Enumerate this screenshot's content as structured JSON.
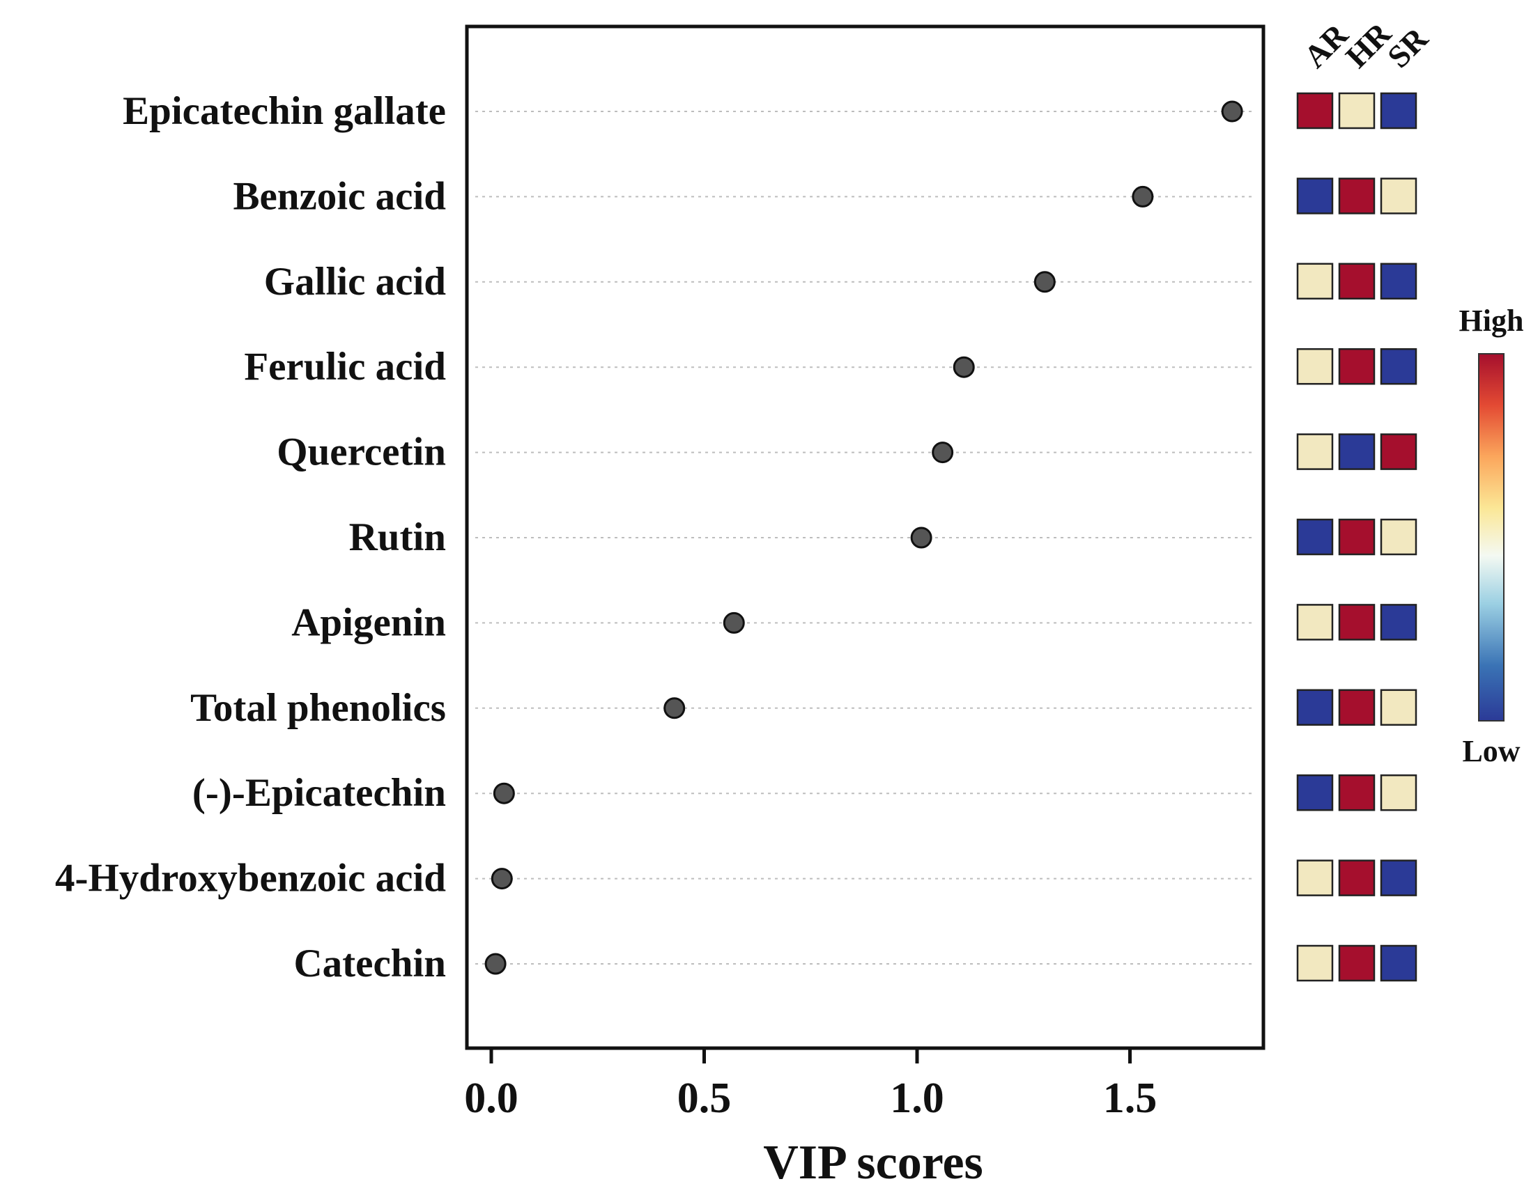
{
  "chart_data": {
    "type": "scatter",
    "xlabel": "VIP scores",
    "xlim": [
      -0.06,
      1.8
    ],
    "xticks": [
      "0.0",
      "0.5",
      "1.0",
      "1.5"
    ],
    "xtick_values": [
      0,
      0.5,
      1.0,
      1.5
    ],
    "grid": "dotted horizontal lines per compound",
    "categories": [
      "Epicatechin gallate",
      "Benzoic acid",
      "Gallic acid",
      "Ferulic acid",
      "Quercetin",
      "Rutin",
      "Apigenin",
      "Total phenolics",
      "(-)-Epicatechin",
      "4-Hydroxybenzoic acid",
      "Catechin"
    ],
    "values": [
      1.74,
      1.53,
      1.3,
      1.11,
      1.06,
      1.01,
      0.57,
      0.43,
      0.03,
      0.025,
      0.01
    ],
    "heatmap": {
      "groups": [
        "AR",
        "HR",
        "SR"
      ],
      "levels": [
        [
          "high",
          "mid",
          "low"
        ],
        [
          "low",
          "high",
          "mid"
        ],
        [
          "mid",
          "high",
          "low"
        ],
        [
          "mid",
          "high",
          "low"
        ],
        [
          "mid",
          "low",
          "high"
        ],
        [
          "low",
          "high",
          "mid"
        ],
        [
          "mid",
          "high",
          "low"
        ],
        [
          "low",
          "high",
          "mid"
        ],
        [
          "low",
          "high",
          "mid"
        ],
        [
          "mid",
          "high",
          "low"
        ],
        [
          "mid",
          "high",
          "low"
        ]
      ],
      "colors": {
        "high": "#a50f2d",
        "mid": "#f2e8c0",
        "low": "#2b3a97"
      },
      "legend_high": "High",
      "legend_low": "Low"
    },
    "point_color": "#555555",
    "legend_placement": "right"
  }
}
